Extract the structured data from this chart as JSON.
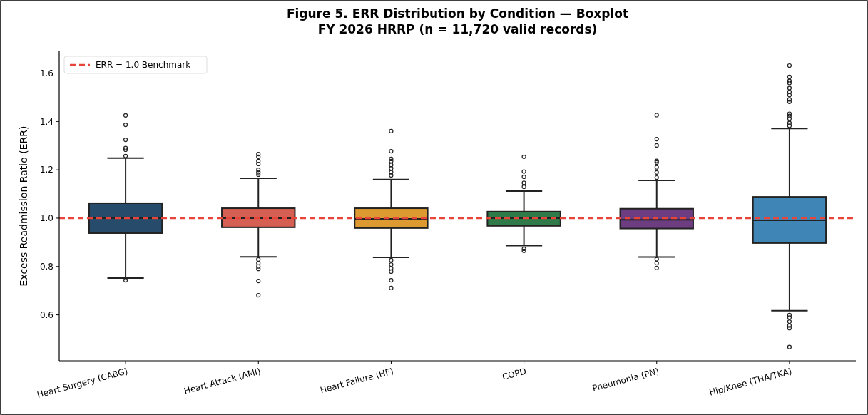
{
  "chart_data": {
    "type": "box",
    "title": "Figure 5. ERR Distribution by Condition — Boxplot\nFY 2026 HRRP (n = 11,720 valid records)",
    "ylabel": "Excess Readmission Ratio (ERR)",
    "categories": [
      "Heart Surgery (CABG)",
      "Heart Attack (AMI)",
      "Heart Failure (HF)",
      "COPD",
      "Pneumonia (PN)",
      "Hip/Knee (THA/TKA)"
    ],
    "colors": [
      "#264b6b",
      "#d55f52",
      "#dc9a30",
      "#2e7a48",
      "#6c3d80",
      "#3f85b5"
    ],
    "boxes": [
      {
        "low": 0.752,
        "q1": 0.938,
        "median": 1.0,
        "q3": 1.062,
        "high": 1.248,
        "outliers": [
          1.425,
          1.386,
          1.324,
          1.29,
          1.283,
          1.257,
          0.743
        ]
      },
      {
        "low": 0.84,
        "q1": 0.962,
        "median": 1.0,
        "q3": 1.041,
        "high": 1.165,
        "outliers": [
          1.265,
          1.254,
          1.236,
          1.224,
          1.2,
          1.19,
          1.18,
          0.829,
          0.814,
          0.8,
          0.79,
          0.74,
          0.681
        ]
      },
      {
        "low": 0.838,
        "q1": 0.959,
        "median": 0.997,
        "q3": 1.041,
        "high": 1.16,
        "outliers": [
          1.36,
          1.277,
          1.245,
          1.236,
          1.22,
          1.206,
          1.19,
          1.177,
          0.826,
          0.808,
          0.793,
          0.779,
          0.743,
          0.711
        ]
      },
      {
        "low": 0.886,
        "q1": 0.968,
        "median": 1.0,
        "q3": 1.027,
        "high": 1.112,
        "outliers": [
          1.254,
          1.193,
          1.171,
          1.146,
          1.13,
          0.873,
          0.865
        ]
      },
      {
        "low": 0.839,
        "q1": 0.957,
        "median": 0.993,
        "q3": 1.039,
        "high": 1.156,
        "outliers": [
          1.426,
          1.327,
          1.301,
          1.237,
          1.23,
          1.21,
          1.189,
          1.168,
          0.83,
          0.814,
          0.794
        ]
      },
      {
        "low": 0.617,
        "q1": 0.897,
        "median": 0.991,
        "q3": 1.088,
        "high": 1.371,
        "outliers": [
          1.631,
          1.584,
          1.567,
          1.559,
          1.538,
          1.522,
          1.509,
          1.491,
          1.481,
          1.432,
          1.423,
          1.412,
          1.393,
          1.382,
          0.599,
          0.589,
          0.572,
          0.556,
          0.545,
          0.467
        ]
      }
    ],
    "ylim": [
      0.41,
      1.69
    ],
    "yticks": [
      0.6,
      0.8,
      {
        "value": 1,
        "label": "1.0"
      },
      1.2,
      1.4,
      1.6
    ],
    "ref_lines": [
      {
        "axis": "y",
        "value": 1.0,
        "label": "ERR = 1.0 Benchmark",
        "color": "#e8443a",
        "line_style": "dashed"
      }
    ],
    "legend": "top left"
  }
}
